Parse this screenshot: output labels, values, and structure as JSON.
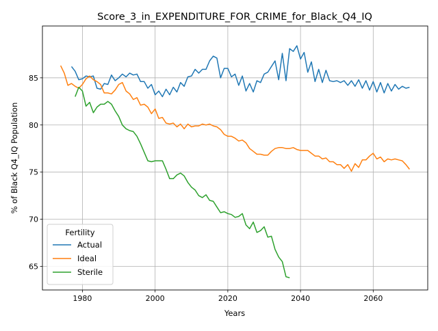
{
  "chart_data": {
    "type": "line",
    "title": "Score_3_in_EXPENDITURE_FOR_CRIME_for_Black_Q4_IQ",
    "xlabel": "Years",
    "ylabel": "% of Black Q4_IQ Population",
    "xlim": [
      1969,
      2075
    ],
    "ylim": [
      62.5,
      90.5
    ],
    "xticks": [
      1980,
      2000,
      2020,
      2040,
      2060
    ],
    "yticks": [
      65,
      70,
      75,
      80,
      85
    ],
    "grid": true,
    "legend": {
      "title": "Fertility",
      "placement": "lower-left"
    },
    "series": [
      {
        "name": "Actual",
        "color": "#1f77b4",
        "x": [
          1977,
          1978,
          1979,
          1980,
          1981,
          1982,
          1983,
          1984,
          1985,
          1986,
          1987,
          1988,
          1989,
          1990,
          1991,
          1992,
          1993,
          1994,
          1995,
          1996,
          1997,
          1998,
          1999,
          2000,
          2001,
          2002,
          2003,
          2004,
          2005,
          2006,
          2007,
          2008,
          2009,
          2010,
          2011,
          2012,
          2013,
          2014,
          2015,
          2016,
          2017,
          2018,
          2019,
          2020,
          2021,
          2022,
          2023,
          2024,
          2025,
          2026,
          2027,
          2028,
          2029,
          2030,
          2031,
          2032,
          2033,
          2034,
          2035,
          2036,
          2037,
          2038,
          2039,
          2040,
          2041,
          2042,
          2043,
          2044,
          2045,
          2046,
          2047,
          2048,
          2049,
          2050,
          2051,
          2052,
          2053,
          2054,
          2055,
          2056,
          2057,
          2058,
          2059,
          2060,
          2061,
          2062,
          2063,
          2064,
          2065,
          2066,
          2067,
          2068,
          2069,
          2070
        ],
        "values": [
          86.2,
          85.7,
          84.8,
          84.9,
          85.2,
          85.1,
          85.2,
          83.9,
          83.8,
          84.4,
          84.3,
          85.3,
          84.7,
          85.0,
          85.4,
          85.1,
          85.5,
          85.3,
          85.4,
          84.6,
          84.6,
          83.9,
          84.3,
          83.2,
          83.6,
          83.0,
          83.8,
          83.2,
          84.0,
          83.5,
          84.5,
          84.1,
          85.1,
          85.2,
          85.9,
          85.5,
          85.9,
          85.9,
          86.8,
          87.3,
          87.1,
          85.0,
          86.0,
          86.0,
          85.1,
          85.4,
          84.2,
          85.2,
          83.6,
          84.4,
          83.5,
          84.7,
          84.5,
          85.4,
          85.6,
          86.2,
          86.8,
          84.8,
          87.6,
          84.7,
          88.1,
          87.8,
          88.4,
          87.0,
          87.7,
          85.6,
          86.7,
          84.6,
          85.9,
          84.5,
          85.8,
          84.7,
          84.6,
          84.7,
          84.5,
          84.7,
          84.2,
          84.7,
          84.1,
          84.8,
          83.9,
          84.7,
          83.7,
          84.6,
          83.5,
          84.5,
          83.4,
          84.4,
          83.6,
          84.3,
          83.8,
          84.1,
          83.9,
          84.0
        ]
      },
      {
        "name": "Ideal",
        "color": "#ff7f0e",
        "x": [
          1974,
          1975,
          1976,
          1977,
          1978,
          1979,
          1980,
          1981,
          1982,
          1983,
          1984,
          1985,
          1986,
          1987,
          1988,
          1989,
          1990,
          1991,
          1992,
          1993,
          1994,
          1995,
          1996,
          1997,
          1998,
          1999,
          2000,
          2001,
          2002,
          2003,
          2004,
          2005,
          2006,
          2007,
          2008,
          2009,
          2010,
          2011,
          2012,
          2013,
          2014,
          2015,
          2016,
          2017,
          2018,
          2019,
          2020,
          2021,
          2022,
          2023,
          2024,
          2025,
          2026,
          2027,
          2028,
          2029,
          2030,
          2031,
          2032,
          2033,
          2034,
          2035,
          2036,
          2037,
          2038,
          2039,
          2040,
          2041,
          2042,
          2043,
          2044,
          2045,
          2046,
          2047,
          2048,
          2049,
          2050,
          2051,
          2052,
          2053,
          2054,
          2055,
          2056,
          2057,
          2058,
          2059,
          2060,
          2061,
          2062,
          2063,
          2064,
          2065,
          2066,
          2067,
          2068,
          2069,
          2070
        ],
        "values": [
          86.3,
          85.5,
          84.2,
          84.4,
          84.1,
          83.9,
          84.3,
          84.9,
          85.2,
          84.8,
          84.6,
          84.3,
          83.4,
          83.4,
          83.3,
          83.7,
          84.3,
          84.5,
          83.6,
          83.3,
          82.7,
          82.9,
          82.1,
          82.2,
          81.9,
          81.2,
          81.7,
          80.7,
          80.8,
          80.2,
          80.1,
          80.2,
          79.8,
          80.1,
          79.6,
          80.1,
          79.8,
          79.9,
          79.9,
          80.1,
          80.0,
          80.1,
          79.9,
          79.8,
          79.5,
          79.0,
          78.8,
          78.8,
          78.6,
          78.3,
          78.4,
          78.1,
          77.5,
          77.2,
          76.9,
          76.9,
          76.8,
          76.8,
          77.2,
          77.5,
          77.6,
          77.6,
          77.5,
          77.5,
          77.6,
          77.4,
          77.3,
          77.3,
          77.3,
          77.0,
          76.7,
          76.7,
          76.4,
          76.5,
          76.1,
          76.1,
          75.8,
          75.8,
          75.4,
          75.8,
          75.1,
          75.9,
          75.5,
          76.3,
          76.3,
          76.7,
          77.0,
          76.4,
          76.6,
          76.1,
          76.4,
          76.3,
          76.4,
          76.3,
          76.2,
          75.8,
          75.3
        ]
      },
      {
        "name": "Sterile",
        "color": "#2ca02c",
        "x": [
          1978,
          1979,
          1980,
          1981,
          1982,
          1983,
          1984,
          1985,
          1986,
          1987,
          1988,
          1989,
          1990,
          1991,
          1992,
          1993,
          1994,
          1995,
          1996,
          1997,
          1998,
          1999,
          2000,
          2001,
          2002,
          2003,
          2004,
          2005,
          2006,
          2007,
          2008,
          2009,
          2010,
          2011,
          2012,
          2013,
          2014,
          2015,
          2016,
          2017,
          2018,
          2019,
          2020,
          2021,
          2022,
          2023,
          2024,
          2025,
          2026,
          2027,
          2028,
          2029,
          2030,
          2031,
          2032,
          2033,
          2034,
          2035,
          2036,
          2037
        ],
        "values": [
          83.0,
          84.0,
          83.6,
          82.0,
          82.4,
          81.3,
          81.9,
          82.2,
          82.2,
          82.5,
          82.2,
          81.5,
          80.9,
          80.0,
          79.6,
          79.4,
          79.3,
          78.8,
          78.0,
          77.1,
          76.2,
          76.1,
          76.2,
          76.2,
          76.2,
          75.3,
          74.3,
          74.3,
          74.7,
          74.9,
          74.6,
          73.9,
          73.4,
          73.1,
          72.5,
          72.3,
          72.6,
          72.0,
          71.9,
          71.3,
          70.7,
          70.8,
          70.6,
          70.5,
          70.2,
          70.3,
          70.6,
          69.4,
          69.0,
          69.7,
          68.6,
          68.8,
          69.2,
          68.1,
          68.2,
          66.8,
          66.0,
          65.5,
          63.9,
          63.8
        ]
      }
    ]
  }
}
